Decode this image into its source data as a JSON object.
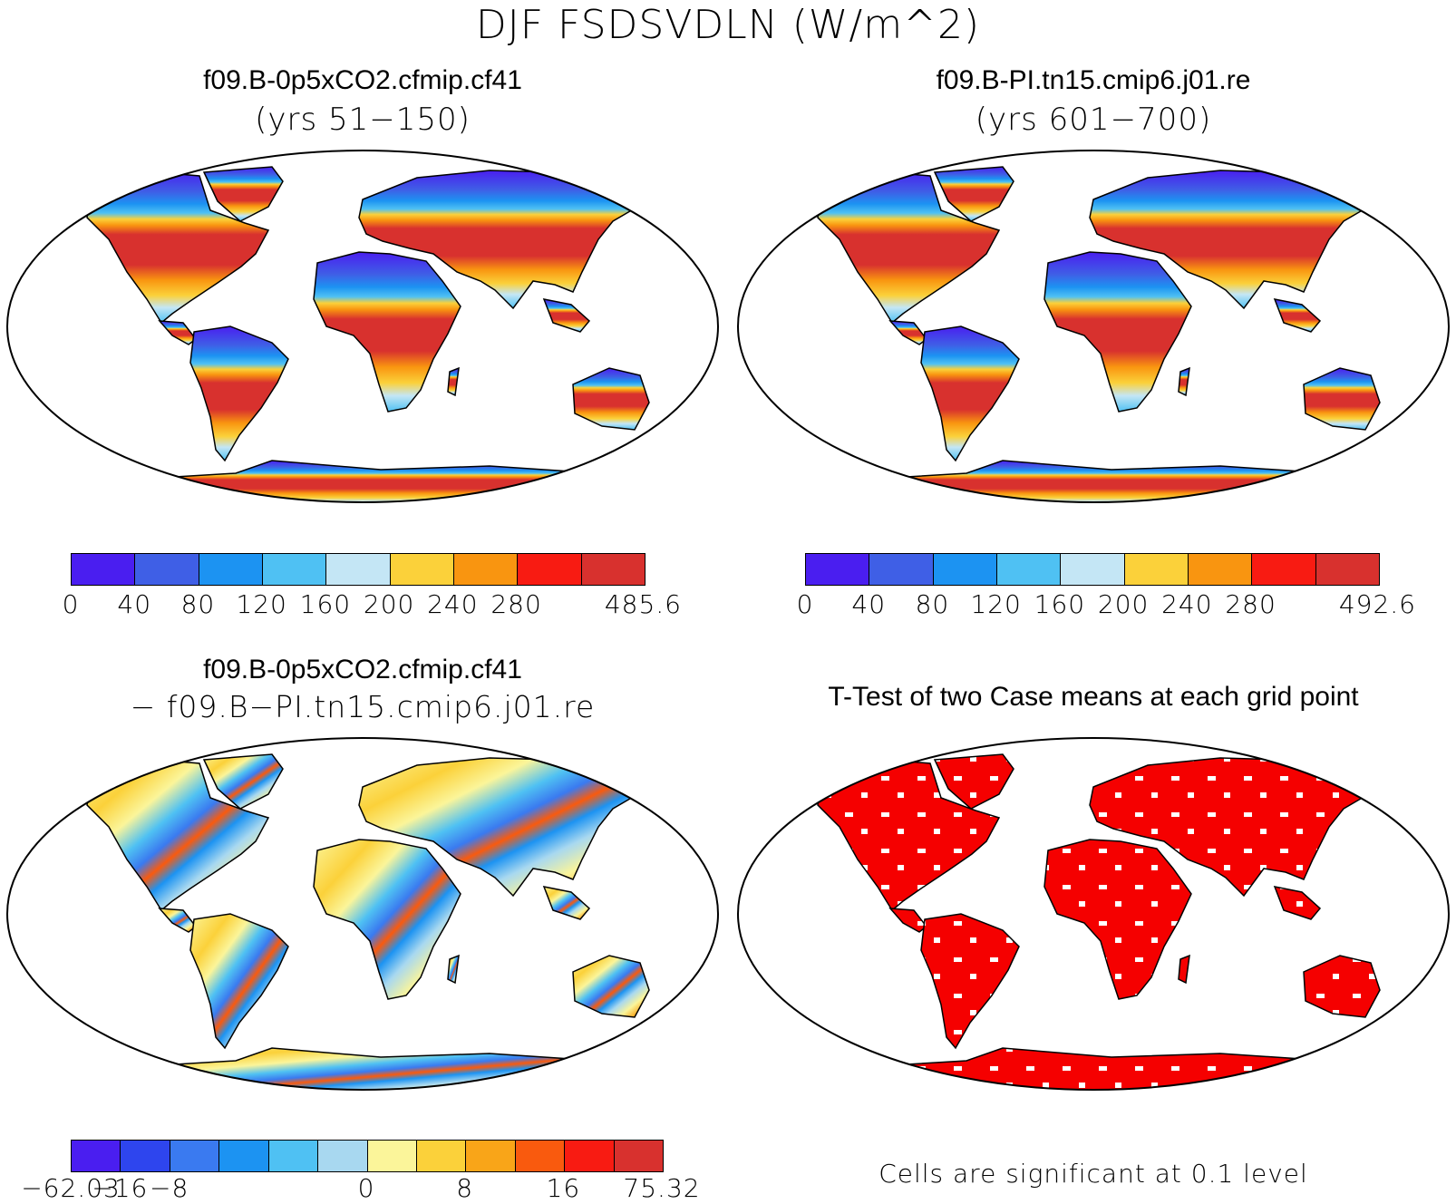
{
  "main_title": "DJF FSDSVDLN (W/m^2)",
  "panels": {
    "top_left": {
      "title": "f09.B-0p5xCO2.cfmip.cf41",
      "subtitle": "(yrs 51−150)"
    },
    "top_right": {
      "title": "f09.B-PI.tn15.cmip6.j01.re",
      "subtitle": "(yrs 601−700)"
    },
    "bottom_left": {
      "title": "f09.B-0p5xCO2.cfmip.cf41",
      "subtitle": "− f09.B−PI.tn15.cmip6.j01.re"
    },
    "bottom_right": {
      "title": "T-Test of two Case means at each grid point",
      "note": "Cells are significant at 0.1 level"
    }
  },
  "colorbars": {
    "abs_left": {
      "colors": [
        "#4a1ef0",
        "#3f5fe6",
        "#1c93f2",
        "#4fc1f3",
        "#c4e6f5",
        "#fbd13a",
        "#f99510",
        "#f81b12",
        "#d8312e"
      ],
      "labels": [
        "0",
        "40",
        "80",
        "120",
        "160",
        "200",
        "240",
        "280",
        "485.6"
      ]
    },
    "abs_right": {
      "colors": [
        "#4a1ef0",
        "#3f5fe6",
        "#1c93f2",
        "#4fc1f3",
        "#c4e6f5",
        "#fbd13a",
        "#f99510",
        "#f81b12",
        "#d8312e"
      ],
      "labels": [
        "0",
        "40",
        "80",
        "120",
        "160",
        "200",
        "240",
        "280",
        "492.6"
      ]
    },
    "diff": {
      "colors": [
        "#4a1ef0",
        "#2e45ee",
        "#3a7af0",
        "#1c93f2",
        "#4fc1f3",
        "#a8d8f0",
        "#fbf59a",
        "#fbd13a",
        "#f9a518",
        "#f95a0e",
        "#f81b12",
        "#d8312e"
      ],
      "labels": [
        "−62.03",
        "−16",
        "−8",
        "0",
        "8",
        "16",
        "75.32"
      ]
    }
  },
  "colors": {
    "significant": "#f50000",
    "coast": "#000000"
  }
}
